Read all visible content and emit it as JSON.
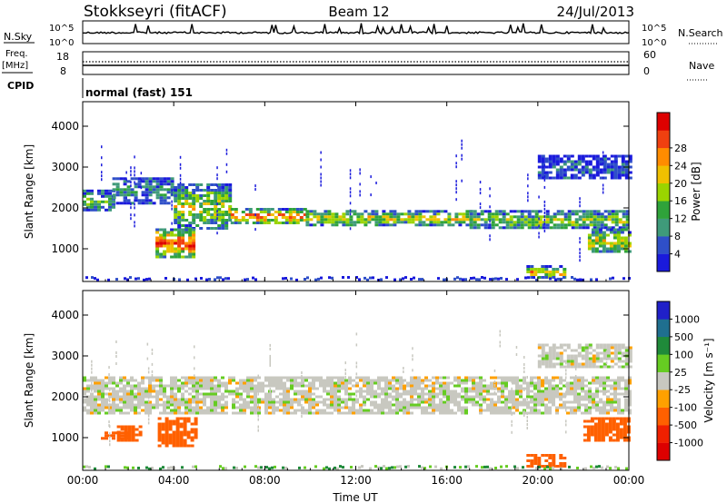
{
  "header": {
    "station": "Stokkseyri (fitACF)",
    "beam": "Beam 12",
    "date": "24/Jul/2013"
  },
  "strips": {
    "nsky_label": "N.Sky",
    "nsky_ticks": [
      "10^5",
      "10^0"
    ],
    "nsearch_label": "N.Search",
    "freq_label_line1": "Freq.",
    "freq_label_line2": "[MHz]",
    "freq_ticks": [
      "18",
      "8"
    ],
    "nave_label": "Nave",
    "nave_ticks": [
      "60",
      "0"
    ],
    "cpid_label": "CPID",
    "cpid_value": "normal (fast) 151"
  },
  "chart_data": [
    {
      "type": "heatmap",
      "name": "power",
      "ylabel": "Slant Range [km]",
      "xlabel": "",
      "x_ticks": [
        "00:00",
        "04:00",
        "08:00",
        "12:00",
        "16:00",
        "20:00",
        "00:00"
      ],
      "y_ticks": [
        "1000",
        "2000",
        "3000",
        "4000"
      ],
      "ylim": [
        200,
        4600
      ],
      "xlim_hours": [
        0,
        24
      ],
      "colorbar_label": "Power [dB]",
      "colorbar_ticks": [
        "4",
        "8",
        "12",
        "16",
        "20",
        "24",
        "28"
      ],
      "colorbar_colors": [
        "#1a1adc",
        "#2f4fc8",
        "#3f9a7a",
        "#2fa33a",
        "#9ad400",
        "#f0c000",
        "#ff8c00",
        "#f04010",
        "#dd0000"
      ],
      "bands": [
        {
          "t": [
            0.0,
            1.3
          ],
          "r": [
            1950,
            2450
          ],
          "level": 0.4
        },
        {
          "t": [
            1.3,
            4.0
          ],
          "r": [
            2100,
            2750
          ],
          "level": 0.3
        },
        {
          "t": [
            4.0,
            6.5
          ],
          "r": [
            1500,
            2600
          ],
          "level": 0.55
        },
        {
          "t": [
            6.5,
            9.8
          ],
          "r": [
            1650,
            2000
          ],
          "level": 0.85
        },
        {
          "t": [
            9.8,
            17.0
          ],
          "r": [
            1600,
            1950
          ],
          "level": 0.6
        },
        {
          "t": [
            17.0,
            24.0
          ],
          "r": [
            1500,
            1950
          ],
          "level": 0.5
        },
        {
          "t": [
            3.2,
            4.9
          ],
          "r": [
            800,
            1500
          ],
          "level": 0.9
        },
        {
          "t": [
            19.5,
            21.2
          ],
          "r": [
            300,
            600
          ],
          "level": 0.7
        },
        {
          "t": [
            22.2,
            24.0
          ],
          "r": [
            900,
            1500
          ],
          "level": 0.6
        },
        {
          "t": [
            20.0,
            24.0
          ],
          "r": [
            2700,
            3300
          ],
          "level": 0.15
        }
      ]
    },
    {
      "type": "heatmap",
      "name": "velocity",
      "ylabel": "Slant Range [km]",
      "xlabel": "Time UT",
      "x_ticks": [
        "00:00",
        "04:00",
        "08:00",
        "12:00",
        "16:00",
        "20:00",
        "00:00"
      ],
      "y_ticks": [
        "1000",
        "2000",
        "3000",
        "4000"
      ],
      "ylim": [
        200,
        4600
      ],
      "xlim_hours": [
        0,
        24
      ],
      "colorbar_label": "Velocity [m s⁻¹]",
      "colorbar_ticks": [
        "1000",
        "500",
        "100",
        "25",
        "-25",
        "-100",
        "-500",
        "-1000"
      ],
      "colorbar_colors": [
        "#2020c8",
        "#1f6f8f",
        "#1f8a3a",
        "#66cc22",
        "#c8c8c0",
        "#ffa000",
        "#ff6000",
        "#f02000",
        "#dd0000"
      ],
      "bands": [
        {
          "t": [
            0.0,
            24.0
          ],
          "r": [
            1600,
            2500
          ],
          "vel": 0
        },
        {
          "t": [
            3.3,
            4.9
          ],
          "r": [
            800,
            1500
          ],
          "vel": -300
        },
        {
          "t": [
            1.5,
            2.6
          ],
          "r": [
            900,
            1300
          ],
          "vel": -150
        },
        {
          "t": [
            19.5,
            21.2
          ],
          "r": [
            300,
            600
          ],
          "vel": -200
        },
        {
          "t": [
            22.0,
            24.0
          ],
          "r": [
            900,
            1500
          ],
          "vel": -400
        },
        {
          "t": [
            20.0,
            24.0
          ],
          "r": [
            2700,
            3300
          ],
          "vel": 0
        },
        {
          "t": [
            0.8,
            2.0
          ],
          "r": [
            1000,
            1150
          ],
          "vel": -250
        }
      ]
    }
  ]
}
